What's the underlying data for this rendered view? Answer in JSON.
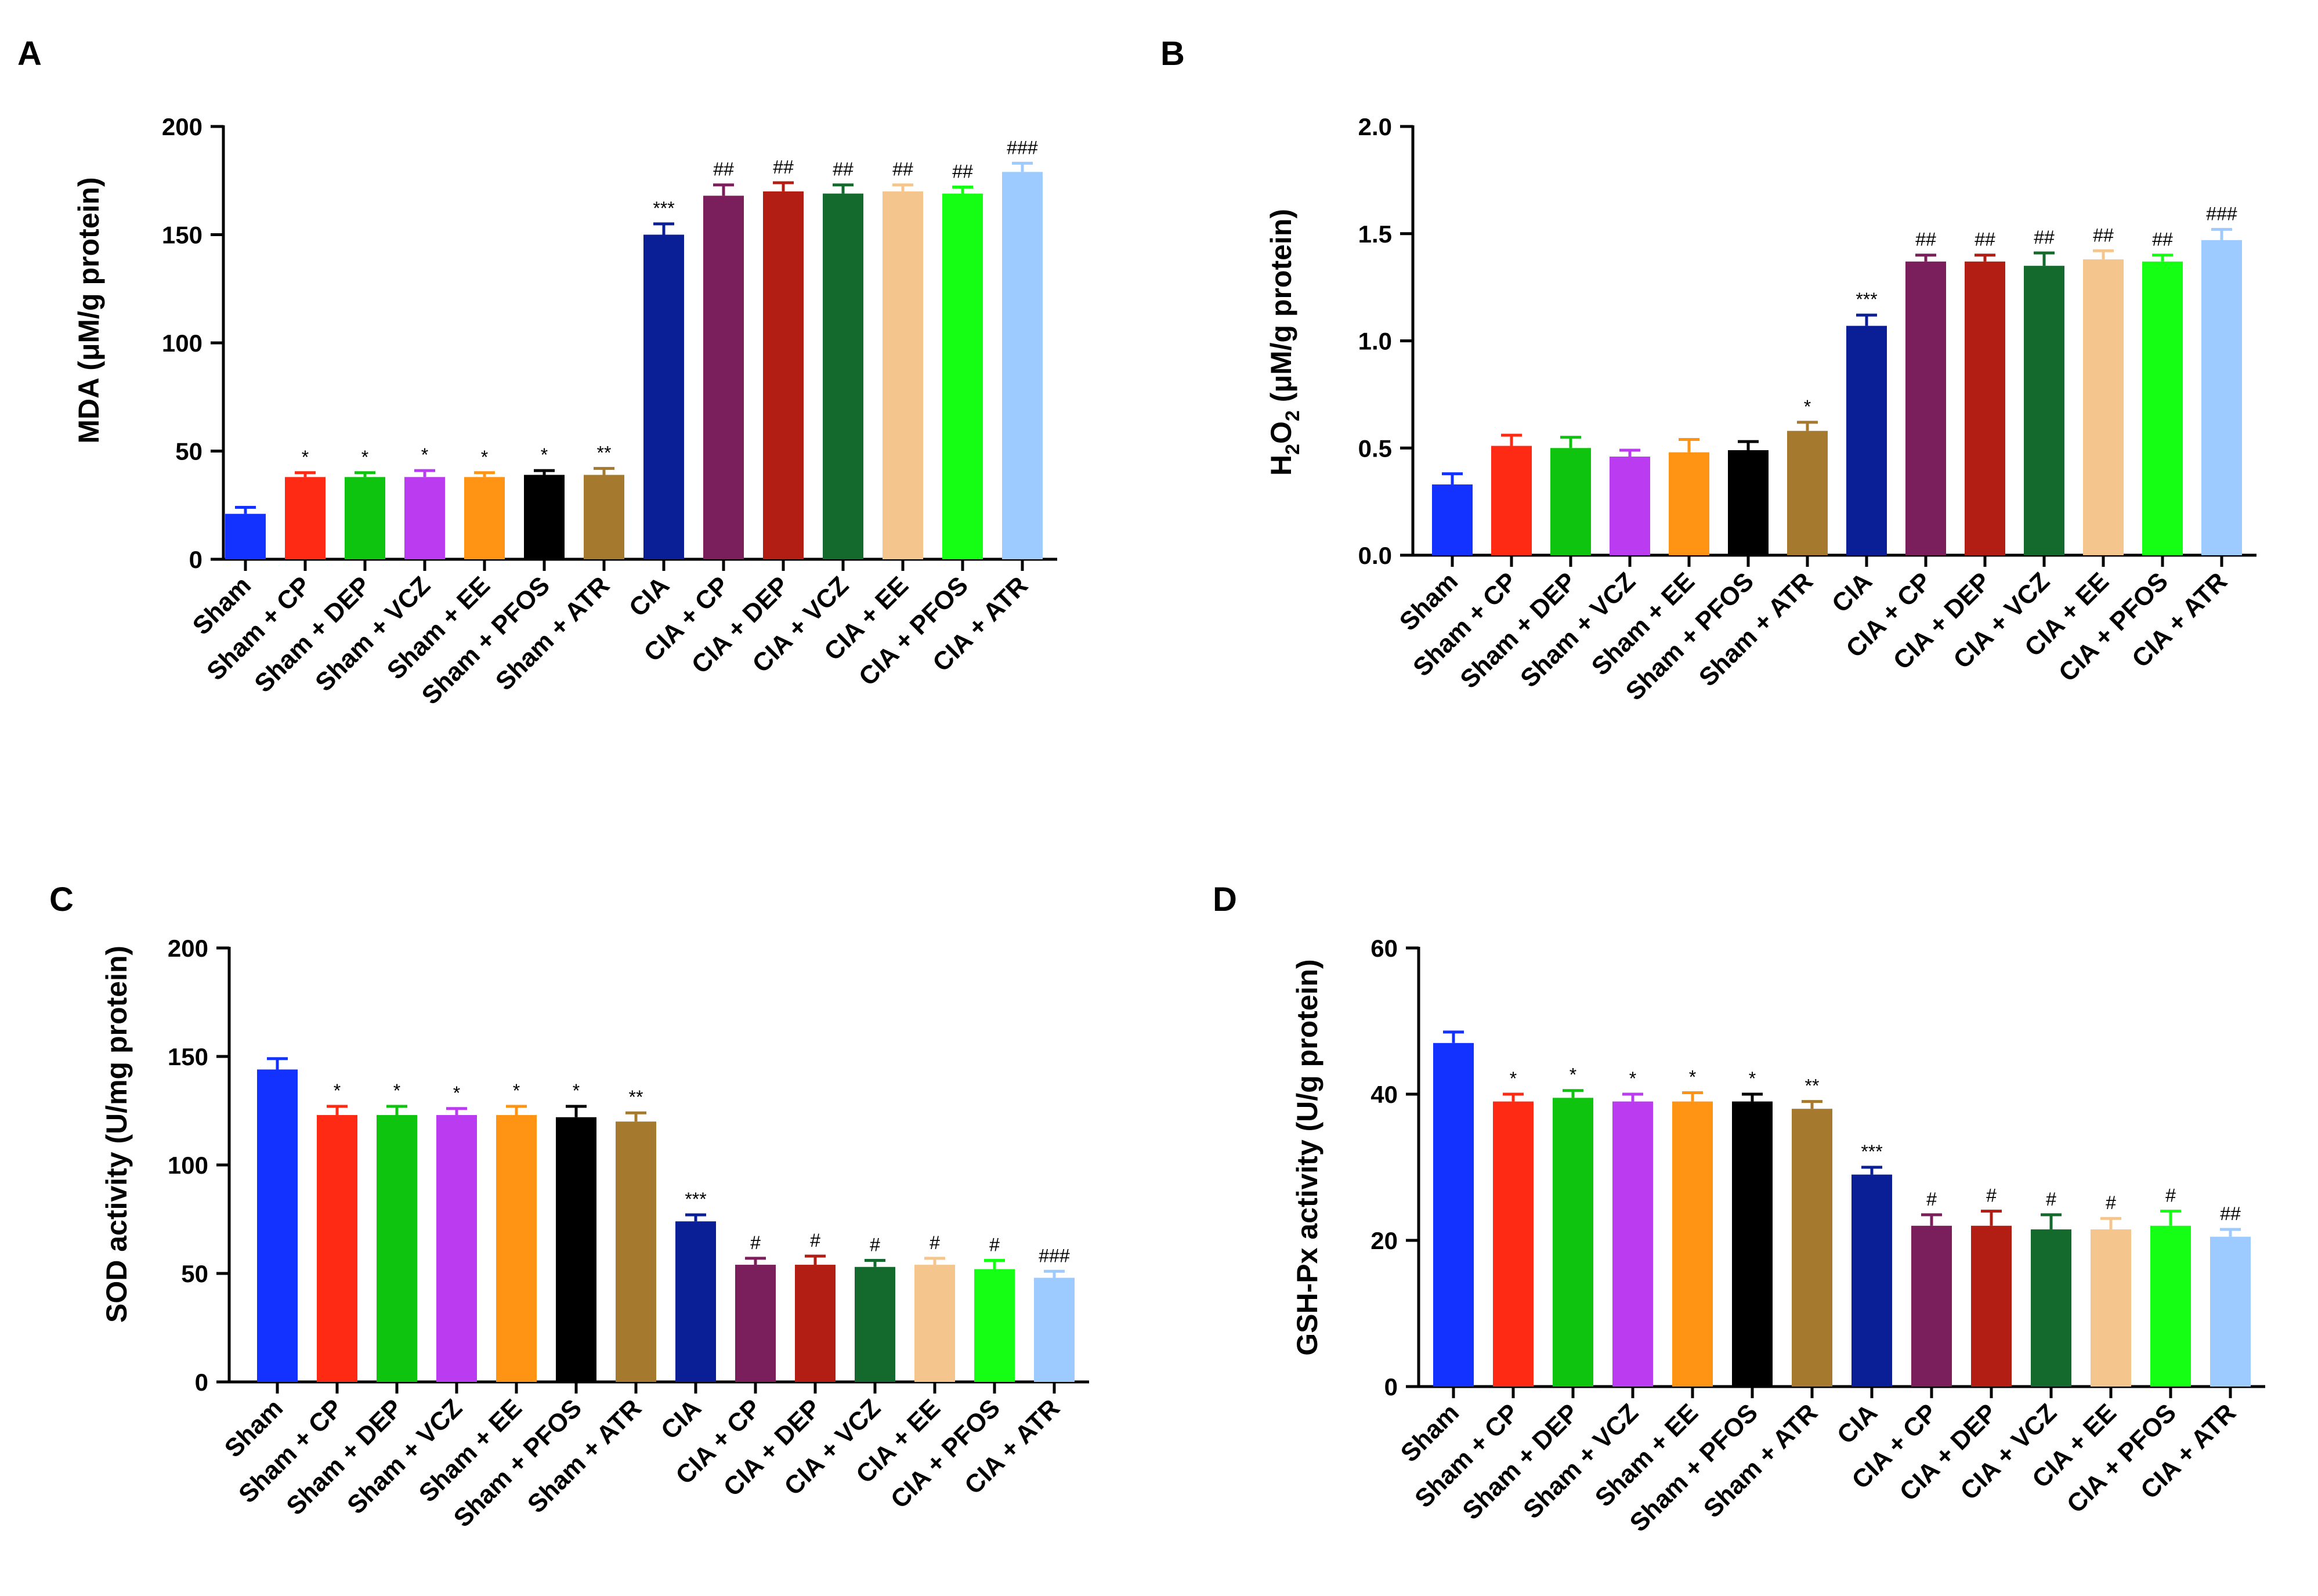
{
  "colors": [
    "#1432ff",
    "#ff2a14",
    "#0fc40f",
    "#bb3cf0",
    "#ff9314",
    "#000000",
    "#a57a2f",
    "#0a1e96",
    "#7a1f5c",
    "#b21e14",
    "#14692d",
    "#f5c58e",
    "#14ff14",
    "#9ecbff"
  ],
  "chart_data": [
    {
      "type": "bar",
      "panel": "A",
      "title": "",
      "ylabel": "MDA (μM/g protein)",
      "ylim": [
        0,
        200
      ],
      "yticks": [
        "0",
        "50",
        "100",
        "150",
        "200"
      ],
      "categories": [
        "Sham",
        "Sham + CP",
        "Sham + DEP",
        "Sham + VCZ",
        "Sham + EE",
        "Sham + PFOS",
        "Sham + ATR",
        "CIA",
        "CIA + CP",
        "CIA + DEP",
        "CIA + VCZ",
        "CIA + EE",
        "CIA + PFOS",
        "CIA + ATR"
      ],
      "values": [
        21,
        38,
        38,
        38,
        38,
        39,
        39,
        150,
        168,
        170,
        169,
        170,
        169,
        179
      ],
      "errors": [
        3,
        2,
        2,
        3,
        2,
        2,
        3,
        5,
        5,
        4,
        4,
        3,
        3,
        4
      ],
      "annotations": [
        "",
        "*",
        "*",
        "*",
        "*",
        "*",
        "**",
        "***",
        "##",
        "##",
        "##",
        "##",
        "##",
        "###"
      ]
    },
    {
      "type": "bar",
      "panel": "B",
      "title": "",
      "ylabel": "H2O2 (μM/g protein)",
      "ylabel_main": "H",
      "ylabel_sub1": "2",
      "ylabel_mid": "O",
      "ylabel_sub2": "2",
      "ylabel_tail": " (μM/g protein)",
      "ylim": [
        0,
        2.0
      ],
      "yticks": [
        "0.0",
        "0.5",
        "1.0",
        "1.5",
        "2.0"
      ],
      "categories": [
        "Sham",
        "Sham + CP",
        "Sham + DEP",
        "Sham + VCZ",
        "Sham + EE",
        "Sham + PFOS",
        "Sham + ATR",
        "CIA",
        "CIA + CP",
        "CIA + DEP",
        "CIA + VCZ",
        "CIA + EE",
        "CIA + PFOS",
        "CIA + ATR"
      ],
      "values": [
        0.33,
        0.51,
        0.5,
        0.46,
        0.48,
        0.49,
        0.58,
        1.07,
        1.37,
        1.37,
        1.35,
        1.38,
        1.37,
        1.47
      ],
      "errors": [
        0.05,
        0.05,
        0.05,
        0.03,
        0.06,
        0.04,
        0.04,
        0.05,
        0.03,
        0.03,
        0.06,
        0.04,
        0.03,
        0.05
      ],
      "annotations": [
        "",
        "",
        "",
        "",
        "",
        "",
        "*",
        "***",
        "##",
        "##",
        "##",
        "##",
        "##",
        "###"
      ]
    },
    {
      "type": "bar",
      "panel": "C",
      "title": "",
      "ylabel": "SOD activity (U/mg protein)",
      "ylim": [
        0,
        200
      ],
      "yticks": [
        "0",
        "50",
        "100",
        "150",
        "200"
      ],
      "categories": [
        "Sham",
        "Sham + CP",
        "Sham + DEP",
        "Sham + VCZ",
        "Sham + EE",
        "Sham + PFOS",
        "Sham + ATR",
        "CIA",
        "CIA + CP",
        "CIA + DEP",
        "CIA + VCZ",
        "CIA + EE",
        "CIA + PFOS",
        "CIA + ATR"
      ],
      "values": [
        144,
        123,
        123,
        123,
        123,
        122,
        120,
        74,
        54,
        54,
        53,
        54,
        52,
        48
      ],
      "errors": [
        5,
        4,
        4,
        3,
        4,
        5,
        4,
        3,
        3,
        4,
        3,
        3,
        4,
        3
      ],
      "annotations": [
        "",
        "*",
        "*",
        "*",
        "*",
        "*",
        "**",
        "***",
        "#",
        "#",
        "#",
        "#",
        "#",
        "###"
      ]
    },
    {
      "type": "bar",
      "panel": "D",
      "title": "",
      "ylabel": "GSH-Px activity (U/g protein)",
      "ylim": [
        0,
        60
      ],
      "yticks": [
        "0",
        "20",
        "40",
        "60"
      ],
      "categories": [
        "Sham",
        "Sham + CP",
        "Sham + DEP",
        "Sham + VCZ",
        "Sham + EE",
        "Sham + PFOS",
        "Sham + ATR",
        "CIA",
        "CIA + CP",
        "CIA + DEP",
        "CIA + VCZ",
        "CIA + EE",
        "CIA + PFOS",
        "CIA + ATR"
      ],
      "values": [
        47,
        39,
        39.5,
        39,
        39,
        39,
        38,
        29,
        22,
        22,
        21.5,
        21.5,
        22,
        20.5
      ],
      "errors": [
        1.5,
        1,
        1,
        1,
        1.2,
        1,
        1,
        1,
        1.5,
        2,
        2,
        1.5,
        2,
        1
      ],
      "annotations": [
        "",
        "*",
        "*",
        "*",
        "*",
        "*",
        "**",
        "***",
        "#",
        "#",
        "#",
        "#",
        "#",
        "##"
      ]
    }
  ]
}
